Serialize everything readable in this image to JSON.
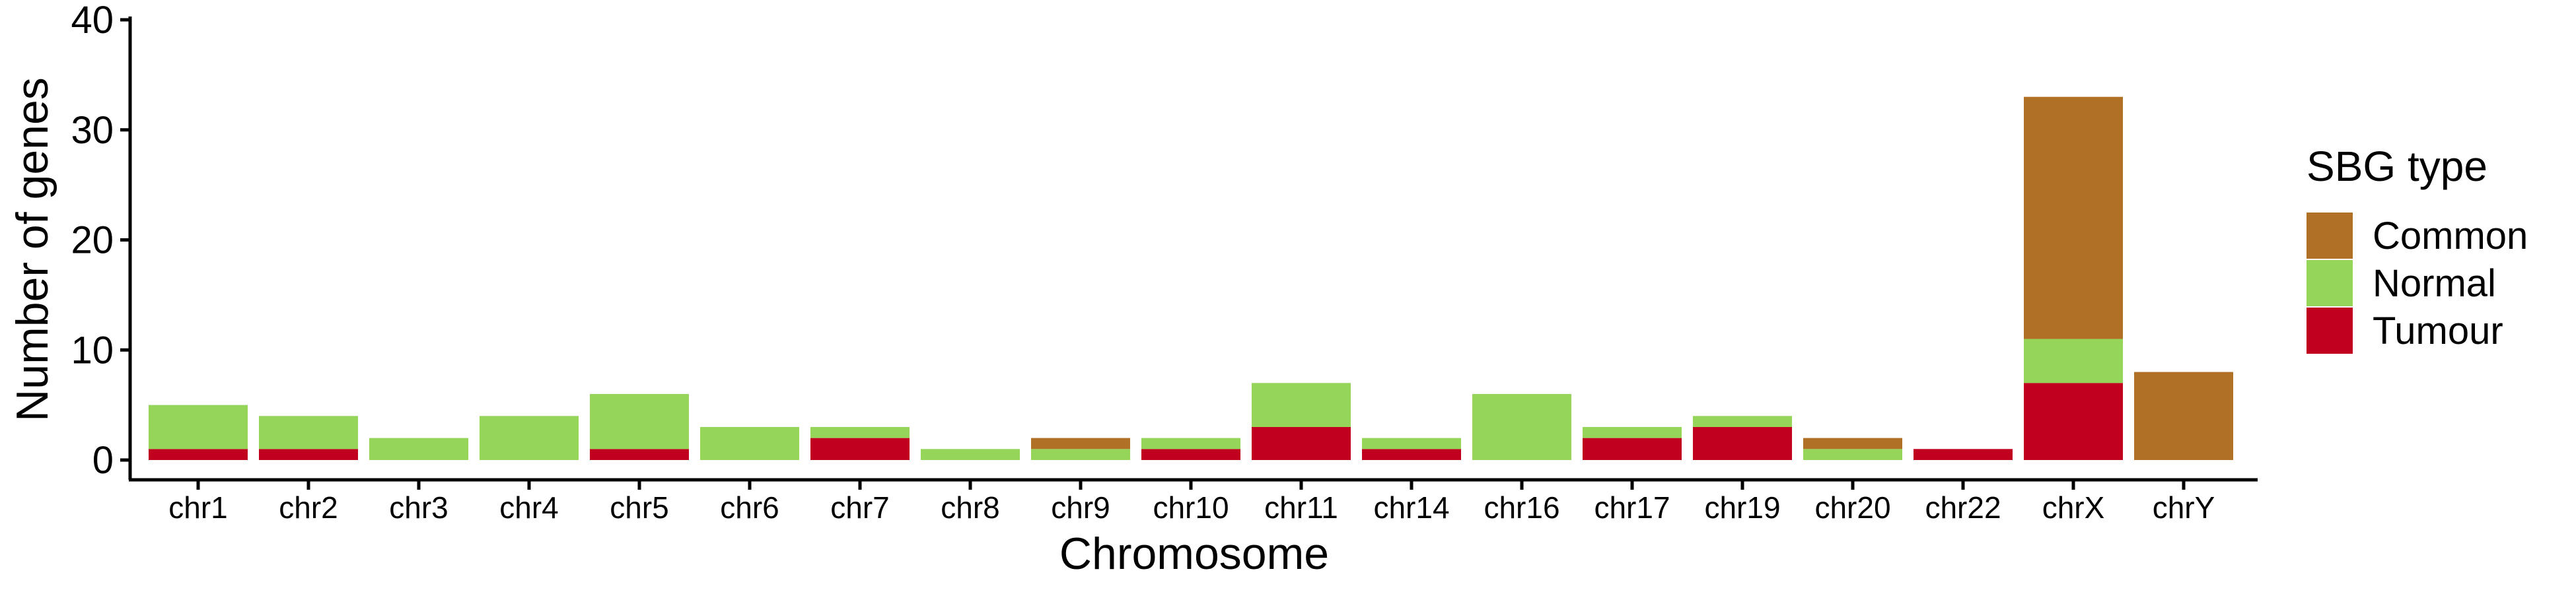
{
  "chart_data": {
    "type": "bar",
    "stacked": true,
    "xlabel": "Chromosome",
    "ylabel": "Number of genes",
    "ylim": [
      0,
      40
    ],
    "yticks": [
      0,
      10,
      20,
      30,
      40
    ],
    "grid": false,
    "legend_position": "right",
    "legend_title": "SBG type",
    "categories": [
      "chr1",
      "chr2",
      "chr3",
      "chr4",
      "chr5",
      "chr6",
      "chr7",
      "chr8",
      "chr9",
      "chr10",
      "chr11",
      "chr14",
      "chr16",
      "chr17",
      "chr19",
      "chr20",
      "chr22",
      "chrX",
      "chrY"
    ],
    "series": [
      {
        "name": "Tumour",
        "color": "#C0001E",
        "values": [
          1,
          1,
          0,
          0,
          1,
          0,
          2,
          0,
          0,
          1,
          3,
          1,
          0,
          2,
          3,
          0,
          1,
          7,
          0
        ]
      },
      {
        "name": "Normal",
        "color": "#95D55A",
        "values": [
          4,
          3,
          2,
          4,
          5,
          3,
          1,
          1,
          1,
          1,
          4,
          1,
          6,
          1,
          1,
          1,
          0,
          4,
          0
        ]
      },
      {
        "name": "Common",
        "color": "#B07026",
        "values": [
          0,
          0,
          0,
          0,
          0,
          0,
          0,
          0,
          1,
          0,
          0,
          0,
          0,
          0,
          0,
          1,
          0,
          22,
          8
        ]
      }
    ],
    "legend_order": [
      "Common",
      "Normal",
      "Tumour"
    ]
  }
}
